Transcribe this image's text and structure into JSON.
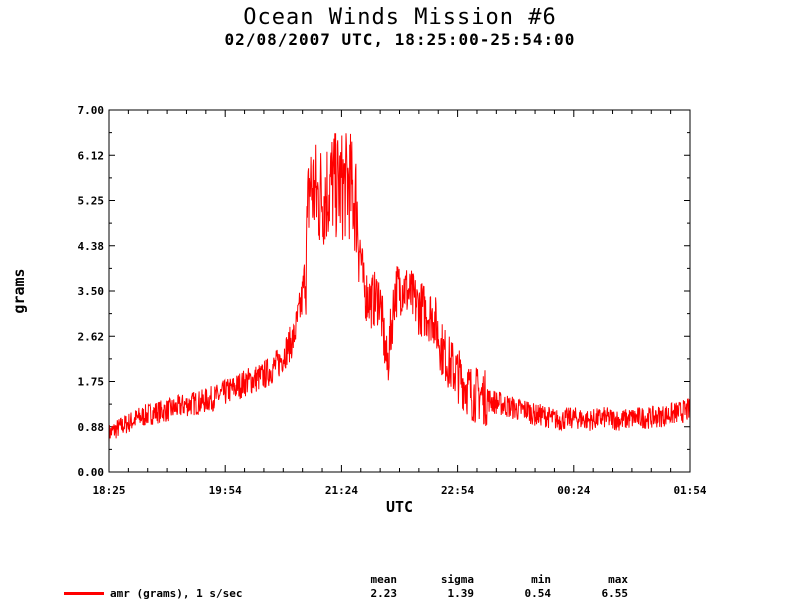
{
  "chart_data": {
    "type": "line",
    "title": "Ocean Winds Mission #6",
    "subtitle": "02/08/2007  UTC, 18:25:00-25:54:00",
    "xlabel": "UTC",
    "ylabel": "grams",
    "x_ticks": [
      "18:25",
      "19:54",
      "21:24",
      "22:54",
      "00:24",
      "01:54"
    ],
    "y_ticks": [
      "0.00",
      "0.88",
      "1.75",
      "2.62",
      "3.50",
      "4.38",
      "5.25",
      "6.12",
      "7.00"
    ],
    "ylim": [
      0,
      7
    ],
    "xlim_hours": [
      18.4167,
      25.9
    ],
    "grid": false,
    "series": [
      {
        "name": "amr (grams), 1 s/sec",
        "color": "#ff0000",
        "x_hours": [
          18.42,
          18.6,
          18.8,
          19.0,
          19.2,
          19.4,
          19.6,
          19.8,
          20.0,
          20.2,
          20.4,
          20.6,
          20.8,
          20.9,
          20.95,
          21.0,
          21.1,
          21.2,
          21.3,
          21.4,
          21.5,
          21.6,
          21.7,
          21.8,
          21.9,
          22.0,
          22.1,
          22.2,
          22.3,
          22.4,
          22.5,
          22.6,
          22.7,
          22.8,
          22.9,
          23.0,
          23.1,
          23.2,
          23.3,
          23.4,
          23.5,
          23.6,
          23.7,
          23.8,
          23.9,
          24.0,
          24.2,
          24.4,
          24.6,
          24.8,
          25.0,
          25.2,
          25.4,
          25.6,
          25.9
        ],
        "values": [
          0.75,
          0.9,
          1.05,
          1.15,
          1.2,
          1.3,
          1.35,
          1.45,
          1.6,
          1.75,
          1.85,
          2.1,
          2.6,
          3.3,
          3.9,
          5.6,
          5.3,
          5.4,
          5.6,
          5.5,
          5.6,
          5.2,
          3.5,
          3.3,
          3.4,
          2.0,
          3.5,
          3.6,
          3.4,
          3.2,
          3.1,
          3.0,
          2.4,
          2.1,
          1.9,
          1.7,
          1.5,
          1.5,
          1.4,
          1.35,
          1.3,
          1.25,
          1.2,
          1.2,
          1.1,
          1.1,
          1.0,
          1.05,
          1.0,
          1.05,
          1.0,
          1.05,
          1.05,
          1.1,
          1.2
        ]
      }
    ],
    "stats": {
      "headers": [
        "mean",
        "sigma",
        "min",
        "max"
      ],
      "values": [
        "2.23",
        "1.39",
        "0.54",
        "6.55"
      ]
    },
    "legend_label": "amr (grams), 1 s/sec"
  }
}
